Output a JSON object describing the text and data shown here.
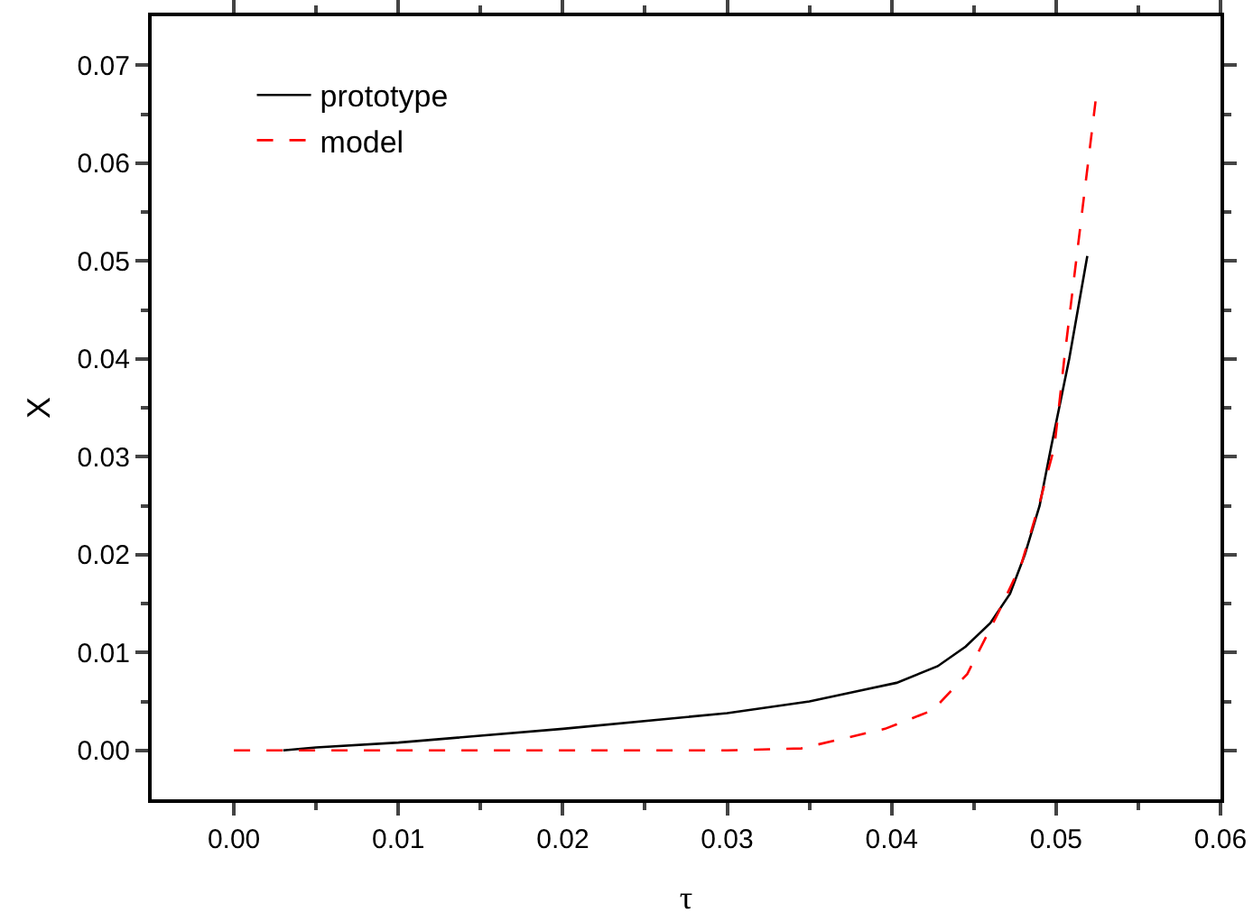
{
  "chart_data": {
    "type": "line",
    "xlabel": "τ",
    "ylabel": "X",
    "xlim": [
      -0.005,
      0.06
    ],
    "ylim": [
      -0.005,
      0.075
    ],
    "xticks": [
      {
        "value": 0,
        "label": "0.00"
      },
      {
        "value": 0.01,
        "label": "0.01"
      },
      {
        "value": 0.02,
        "label": "0.02"
      },
      {
        "value": 0.03,
        "label": "0.03"
      },
      {
        "value": 0.04,
        "label": "0.04"
      },
      {
        "value": 0.05,
        "label": "0.05"
      },
      {
        "value": 0.06,
        "label": "0.06"
      }
    ],
    "yticks": [
      {
        "value": 0,
        "label": "0.00"
      },
      {
        "value": 0.01,
        "label": "0.01"
      },
      {
        "value": 0.02,
        "label": "0.02"
      },
      {
        "value": 0.03,
        "label": "0.03"
      },
      {
        "value": 0.04,
        "label": "0.04"
      },
      {
        "value": 0.05,
        "label": "0.05"
      },
      {
        "value": 0.06,
        "label": "0.06"
      },
      {
        "value": 0.07,
        "label": "0.07"
      }
    ],
    "legend": "top left",
    "grid": false,
    "marker": "none",
    "series": [
      {
        "name": "prototype",
        "color": "#000000",
        "line_style": "solid",
        "x": [
          0.003,
          0.005,
          0.01,
          0.02,
          0.03,
          0.035,
          0.0403,
          0.0428,
          0.0445,
          0.046,
          0.0472,
          0.0481,
          0.049,
          0.0497,
          0.0508,
          0.0519
        ],
        "values": [
          0,
          0.0003,
          0.0008,
          0.0022,
          0.0038,
          0.005,
          0.0069,
          0.0086,
          0.0106,
          0.013,
          0.016,
          0.02,
          0.025,
          0.031,
          0.04,
          0.0505
        ]
      },
      {
        "name": "model",
        "color": "#ff0000",
        "line_style": "dashed",
        "x": [
          0,
          0.01,
          0.02,
          0.03,
          0.0345,
          0.0396,
          0.0425,
          0.0446,
          0.0465,
          0.0479,
          0.049,
          0.0499,
          0.0505,
          0.0512,
          0.0524
        ],
        "values": [
          0,
          0,
          0,
          0,
          0.0002,
          0.0022,
          0.0041,
          0.0078,
          0.0141,
          0.0191,
          0.0253,
          0.031,
          0.04,
          0.0497,
          0.0663
        ]
      }
    ]
  }
}
